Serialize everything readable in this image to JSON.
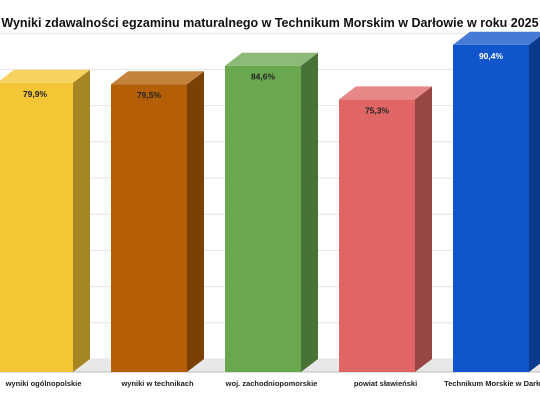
{
  "chart_data": {
    "type": "bar",
    "title": "Wyniki zdawalności egzaminu maturalnego w Technikum Morskim w Darłowie w roku 2025",
    "categories": [
      "wyniki ogólnopolskie",
      "wyniki w technikach",
      "woj. zachodniopomorskie",
      "powiat sławieński",
      "Technikum Morskie w Darłowie"
    ],
    "values": [
      79.9,
      79.5,
      84.6,
      75.3,
      90.4
    ],
    "value_labels": [
      "79,9%",
      "79,5%",
      "84,6%",
      "75,3%",
      "90,4%"
    ],
    "colors": [
      "#f4c534",
      "#b45f06",
      "#6aa84f",
      "#e06666",
      "#1155cc"
    ],
    "ylim": [
      0,
      100
    ],
    "grid": true,
    "bar_style": "3d"
  }
}
